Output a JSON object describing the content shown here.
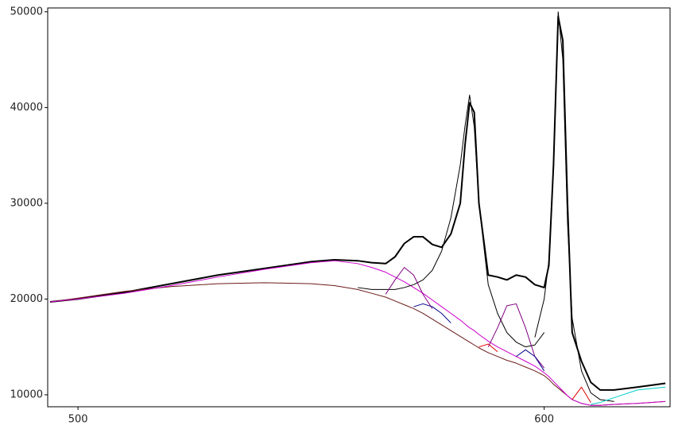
{
  "chart_data": {
    "type": "line",
    "xlim": [
      493.5,
      627
    ],
    "ylim": [
      8750,
      50400
    ],
    "xticks": [
      500,
      600
    ],
    "yticks": [
      10000,
      20000,
      30000,
      40000,
      50000
    ],
    "grid": false,
    "x": [
      494,
      500,
      510,
      520,
      530,
      540,
      550,
      555,
      560,
      563,
      566,
      568,
      570,
      572,
      574,
      576,
      578,
      580,
      582,
      583,
      584,
      585,
      586,
      588,
      590,
      592,
      594,
      596,
      598,
      600,
      601,
      602,
      603,
      604,
      605,
      606,
      608,
      610,
      612,
      615,
      620,
      626
    ],
    "series": [
      {
        "color": "#000000",
        "width": 2,
        "values": [
          19700,
          20000,
          20700,
          21600,
          22500,
          23200,
          23900,
          24100,
          24000,
          23800,
          23700,
          24400,
          25800,
          26500,
          26500,
          25700,
          25400,
          26800,
          30000,
          36000,
          40500,
          39500,
          30000,
          22500,
          22300,
          22000,
          22500,
          22300,
          21500,
          21200,
          23500,
          34000,
          49500,
          47000,
          30000,
          16500,
          13500,
          11300,
          10500,
          10500,
          10800,
          11200
        ]
      },
      {
        "color": "#6b1a1a",
        "width": 1,
        "values": [
          19700,
          20100,
          20800,
          21300,
          21600,
          21700,
          21600,
          21400,
          21000,
          20600,
          20200,
          19800,
          19400,
          19000,
          18500,
          17900,
          17300,
          16700,
          16100,
          15800,
          15500,
          15200,
          14900,
          14400,
          14000,
          13600,
          13300,
          12900,
          12500,
          12000,
          11600,
          11100,
          10700,
          10300,
          9900,
          9500,
          9100,
          8900,
          8900,
          9000,
          9100,
          9300
        ]
      },
      {
        "color": "#cc00cc",
        "width": 1,
        "values": [
          19700,
          20000,
          20600,
          21400,
          22300,
          23100,
          23800,
          24000,
          23700,
          23300,
          22800,
          22300,
          21800,
          21200,
          20600,
          19900,
          19200,
          18500,
          17800,
          17400,
          17000,
          16700,
          16300,
          15600,
          15000,
          14500,
          14000,
          13500,
          13000,
          12300,
          11900,
          11400,
          10900,
          10400,
          9900,
          9500,
          9100,
          8900,
          8900,
          9000,
          9100,
          9300
        ]
      },
      {
        "color": "#000000",
        "width": 1,
        "values": [
          null,
          null,
          null,
          null,
          null,
          null,
          null,
          null,
          21200,
          21000,
          21000,
          21000,
          21200,
          21500,
          22000,
          23000,
          25000,
          28500,
          34000,
          38000,
          41300,
          38000,
          30000,
          21500,
          18500,
          16500,
          15500,
          15000,
          15200,
          16500,
          null,
          null,
          null,
          null,
          null,
          null,
          null,
          null,
          null,
          null,
          null,
          null
        ]
      },
      {
        "color": "#000000",
        "width": 1,
        "values": [
          null,
          null,
          null,
          null,
          null,
          null,
          null,
          null,
          null,
          null,
          null,
          null,
          null,
          null,
          null,
          null,
          null,
          null,
          null,
          null,
          null,
          null,
          null,
          null,
          null,
          null,
          null,
          null,
          16000,
          20000,
          24000,
          34000,
          50000,
          45000,
          28000,
          18000,
          12500,
          10200,
          9500,
          9300,
          null,
          null
        ]
      },
      {
        "color": "#800080",
        "width": 1,
        "values": [
          null,
          null,
          null,
          null,
          null,
          null,
          null,
          null,
          null,
          null,
          20500,
          22000,
          23300,
          22500,
          20500,
          19000,
          null,
          null,
          null,
          null,
          null,
          null,
          null,
          15000,
          17000,
          19300,
          19500,
          17000,
          14000,
          12800,
          null,
          null,
          null,
          null,
          null,
          null,
          null,
          null,
          null,
          null,
          null,
          null
        ]
      },
      {
        "color": "#00008b",
        "width": 1,
        "values": [
          null,
          null,
          null,
          null,
          null,
          null,
          null,
          null,
          null,
          null,
          null,
          null,
          null,
          19200,
          19500,
          19200,
          18500,
          17500,
          null,
          null,
          null,
          null,
          null,
          null,
          null,
          null,
          14000,
          14700,
          14000,
          12500,
          null,
          null,
          null,
          null,
          null,
          null,
          null,
          null,
          null,
          null,
          null,
          null
        ]
      },
      {
        "color": "#e00000",
        "width": 1,
        "values": [
          null,
          null,
          null,
          null,
          null,
          null,
          null,
          null,
          null,
          null,
          null,
          null,
          null,
          null,
          null,
          null,
          null,
          null,
          null,
          null,
          null,
          null,
          15000,
          15300,
          14500,
          null,
          null,
          null,
          null,
          null,
          null,
          null,
          null,
          null,
          null,
          9500,
          10800,
          9200,
          null,
          null,
          null,
          null
        ]
      },
      {
        "color": "#00cccc",
        "width": 1,
        "values": [
          null,
          null,
          null,
          null,
          null,
          null,
          null,
          null,
          null,
          null,
          null,
          null,
          null,
          null,
          null,
          null,
          null,
          null,
          null,
          null,
          null,
          null,
          null,
          null,
          null,
          null,
          null,
          null,
          null,
          null,
          null,
          null,
          null,
          null,
          null,
          null,
          null,
          9000,
          9200,
          9700,
          10500,
          10800
        ]
      }
    ]
  }
}
